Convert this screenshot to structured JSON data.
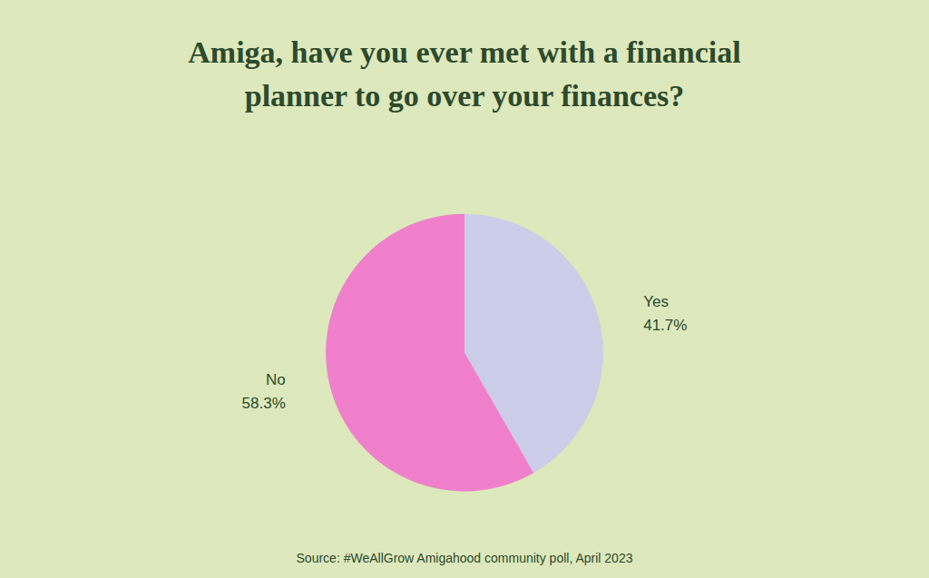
{
  "chart_data": {
    "type": "pie",
    "title": "Amiga, have you ever met with a financial\nplanner to go over your finances?",
    "annotations": [
      "Source: #WeAllGrow Amigahood community poll, April 2023"
    ],
    "categories": [
      "Yes",
      "No"
    ],
    "values": [
      41.7,
      58.3
    ],
    "value_labels": [
      "41.7%",
      "58.3%"
    ],
    "colors": [
      "#cccde8",
      "#f080cc"
    ]
  }
}
